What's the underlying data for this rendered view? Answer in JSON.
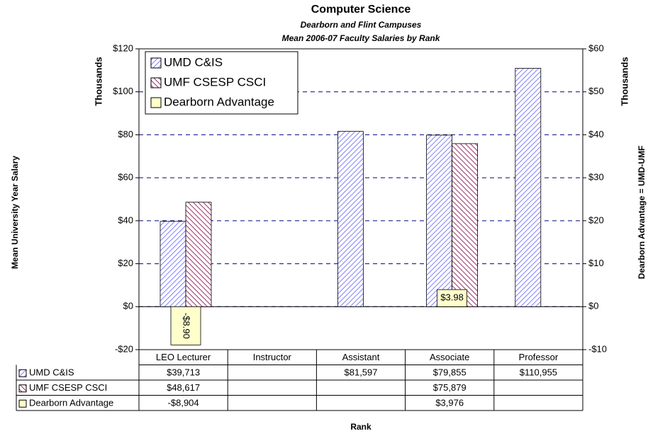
{
  "chart_data": {
    "type": "bar",
    "title": "Computer Science",
    "subtitle": [
      "Dearborn and Flint Campuses",
      "Mean 2006-07 Faculty Salaries by Rank"
    ],
    "y_label": "Mean University Year Salary",
    "y_unit": "Thousands",
    "y2_label": "Dearborn Advantage = UMD-UMF",
    "y2_unit": "Thousands",
    "x_label": "Rank",
    "categories": [
      "LEO Lecturer",
      "Instructor",
      "Assistant",
      "Associate",
      "Professor"
    ],
    "series": [
      {
        "name": "UMD C&IS",
        "color": "#8080ff",
        "values": [
          39.713,
          null,
          81.597,
          79.855,
          110.955
        ],
        "table_labels": [
          "$39,713",
          null,
          "$81,597",
          "$79,855",
          "$110,955"
        ]
      },
      {
        "name": "UMF CSESP CSCI",
        "color": "#993366",
        "values": [
          48.617,
          null,
          null,
          75.879,
          null
        ],
        "table_labels": [
          "$48,617",
          null,
          null,
          "$75,879",
          null
        ]
      },
      {
        "name": "Dearborn Advantage",
        "color": "#ffffcc",
        "axis": "y2",
        "values": [
          -8.904,
          null,
          null,
          3.976,
          null
        ],
        "value_labels": [
          "-$8.90",
          null,
          null,
          "$3.98",
          null
        ],
        "table_labels": [
          "-$8,904",
          null,
          null,
          "$3,976",
          null
        ]
      }
    ],
    "ylim": [
      -20,
      120
    ],
    "yticks": [
      {
        "value": -20,
        "label": "-$20"
      },
      {
        "value": 0,
        "label": "$0"
      },
      {
        "value": 20,
        "label": "$20"
      },
      {
        "value": 40,
        "label": "$40"
      },
      {
        "value": 60,
        "label": "$60"
      },
      {
        "value": 80,
        "label": "$80"
      },
      {
        "value": 100,
        "label": "$100"
      },
      {
        "value": 120,
        "label": "$120"
      }
    ],
    "y2lim": [
      -10,
      60
    ],
    "y2ticks": [
      {
        "value": -10,
        "label": "-$10"
      },
      {
        "value": 0,
        "label": "$0"
      },
      {
        "value": 10,
        "label": "$10"
      },
      {
        "value": 20,
        "label": "$20"
      },
      {
        "value": 30,
        "label": "$30"
      },
      {
        "value": 40,
        "label": "$40"
      },
      {
        "value": 50,
        "label": "$50"
      },
      {
        "value": 60,
        "label": "$60"
      }
    ],
    "grid": true,
    "legend": "top-left"
  }
}
